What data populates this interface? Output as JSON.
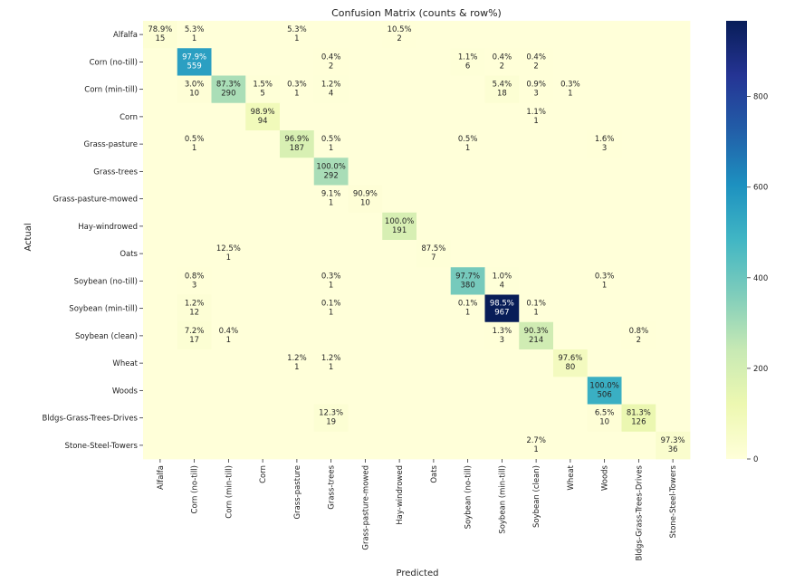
{
  "chart_data": {
    "type": "heatmap",
    "title": "Confusion Matrix (counts & row%)",
    "xlabel": "Predicted",
    "ylabel": "Actual",
    "classes": [
      "Alfalfa",
      "Corn (no-till)",
      "Corn (min-till)",
      "Corn",
      "Grass-pasture",
      "Grass-trees",
      "Grass-pasture-mowed",
      "Hay-windrowed",
      "Oats",
      "Soybean (no-till)",
      "Soybean (min-till)",
      "Soybean (clean)",
      "Wheat",
      "Woods",
      "Bldgs-Grass-Trees-Drives",
      "Stone-Steel-Towers"
    ],
    "cells": [
      {
        "row": 0,
        "col": 0,
        "count": 15,
        "pct": "78.9%"
      },
      {
        "row": 0,
        "col": 1,
        "count": 1,
        "pct": "5.3%"
      },
      {
        "row": 0,
        "col": 4,
        "count": 1,
        "pct": "5.3%"
      },
      {
        "row": 0,
        "col": 7,
        "count": 2,
        "pct": "10.5%"
      },
      {
        "row": 1,
        "col": 1,
        "count": 559,
        "pct": "97.9%"
      },
      {
        "row": 1,
        "col": 5,
        "count": 2,
        "pct": "0.4%"
      },
      {
        "row": 1,
        "col": 9,
        "count": 6,
        "pct": "1.1%"
      },
      {
        "row": 1,
        "col": 10,
        "count": 2,
        "pct": "0.4%"
      },
      {
        "row": 1,
        "col": 11,
        "count": 2,
        "pct": "0.4%"
      },
      {
        "row": 2,
        "col": 1,
        "count": 10,
        "pct": "3.0%"
      },
      {
        "row": 2,
        "col": 2,
        "count": 290,
        "pct": "87.3%"
      },
      {
        "row": 2,
        "col": 3,
        "count": 5,
        "pct": "1.5%"
      },
      {
        "row": 2,
        "col": 4,
        "count": 1,
        "pct": "0.3%"
      },
      {
        "row": 2,
        "col": 5,
        "count": 4,
        "pct": "1.2%"
      },
      {
        "row": 2,
        "col": 10,
        "count": 18,
        "pct": "5.4%"
      },
      {
        "row": 2,
        "col": 11,
        "count": 3,
        "pct": "0.9%"
      },
      {
        "row": 2,
        "col": 12,
        "count": 1,
        "pct": "0.3%"
      },
      {
        "row": 3,
        "col": 3,
        "count": 94,
        "pct": "98.9%"
      },
      {
        "row": 3,
        "col": 11,
        "count": 1,
        "pct": "1.1%"
      },
      {
        "row": 4,
        "col": 1,
        "count": 1,
        "pct": "0.5%"
      },
      {
        "row": 4,
        "col": 4,
        "count": 187,
        "pct": "96.9%"
      },
      {
        "row": 4,
        "col": 5,
        "count": 1,
        "pct": "0.5%"
      },
      {
        "row": 4,
        "col": 9,
        "count": 1,
        "pct": "0.5%"
      },
      {
        "row": 4,
        "col": 13,
        "count": 3,
        "pct": "1.6%"
      },
      {
        "row": 5,
        "col": 5,
        "count": 292,
        "pct": "100.0%"
      },
      {
        "row": 6,
        "col": 5,
        "count": 1,
        "pct": "9.1%"
      },
      {
        "row": 6,
        "col": 6,
        "count": 10,
        "pct": "90.9%"
      },
      {
        "row": 7,
        "col": 7,
        "count": 191,
        "pct": "100.0%"
      },
      {
        "row": 8,
        "col": 2,
        "count": 1,
        "pct": "12.5%"
      },
      {
        "row": 8,
        "col": 8,
        "count": 7,
        "pct": "87.5%"
      },
      {
        "row": 9,
        "col": 1,
        "count": 3,
        "pct": "0.8%"
      },
      {
        "row": 9,
        "col": 5,
        "count": 1,
        "pct": "0.3%"
      },
      {
        "row": 9,
        "col": 9,
        "count": 380,
        "pct": "97.7%"
      },
      {
        "row": 9,
        "col": 10,
        "count": 4,
        "pct": "1.0%"
      },
      {
        "row": 9,
        "col": 13,
        "count": 1,
        "pct": "0.3%"
      },
      {
        "row": 10,
        "col": 1,
        "count": 12,
        "pct": "1.2%"
      },
      {
        "row": 10,
        "col": 5,
        "count": 1,
        "pct": "0.1%"
      },
      {
        "row": 10,
        "col": 9,
        "count": 1,
        "pct": "0.1%"
      },
      {
        "row": 10,
        "col": 10,
        "count": 967,
        "pct": "98.5%"
      },
      {
        "row": 10,
        "col": 11,
        "count": 1,
        "pct": "0.1%"
      },
      {
        "row": 11,
        "col": 1,
        "count": 17,
        "pct": "7.2%"
      },
      {
        "row": 11,
        "col": 2,
        "count": 1,
        "pct": "0.4%"
      },
      {
        "row": 11,
        "col": 10,
        "count": 3,
        "pct": "1.3%"
      },
      {
        "row": 11,
        "col": 11,
        "count": 214,
        "pct": "90.3%"
      },
      {
        "row": 11,
        "col": 14,
        "count": 2,
        "pct": "0.8%"
      },
      {
        "row": 12,
        "col": 4,
        "count": 1,
        "pct": "1.2%"
      },
      {
        "row": 12,
        "col": 5,
        "count": 1,
        "pct": "1.2%"
      },
      {
        "row": 12,
        "col": 12,
        "count": 80,
        "pct": "97.6%"
      },
      {
        "row": 13,
        "col": 13,
        "count": 506,
        "pct": "100.0%"
      },
      {
        "row": 14,
        "col": 5,
        "count": 19,
        "pct": "12.3%"
      },
      {
        "row": 14,
        "col": 13,
        "count": 10,
        "pct": "6.5%"
      },
      {
        "row": 14,
        "col": 14,
        "count": 126,
        "pct": "81.3%"
      },
      {
        "row": 15,
        "col": 11,
        "count": 1,
        "pct": "2.7%"
      },
      {
        "row": 15,
        "col": 15,
        "count": 36,
        "pct": "97.3%"
      }
    ],
    "colorbar": {
      "colormap": "YlGnBu",
      "min": 0,
      "max": 967,
      "ticks": [
        0,
        200,
        400,
        600,
        800
      ]
    }
  }
}
